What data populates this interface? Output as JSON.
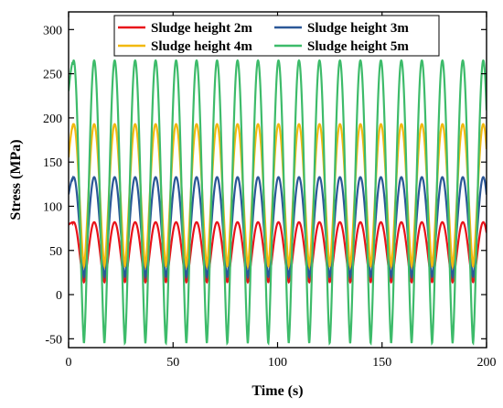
{
  "chart_data": {
    "type": "line",
    "title": "",
    "xlabel": "Time (s)",
    "ylabel": "Stress (MPa)",
    "xlim": [
      0,
      200
    ],
    "ylim": [
      -60,
      320
    ],
    "x_ticks": [
      0,
      50,
      100,
      150,
      200
    ],
    "y_ticks": [
      -50,
      0,
      50,
      100,
      150,
      200,
      250,
      300
    ],
    "grid": false,
    "legend_position": "top",
    "legend_columns": 2,
    "period_s": 9.8,
    "series": [
      {
        "name": "Sludge height 2m",
        "color": "#e8121a",
        "max": 82,
        "min": 14,
        "min_at_start": 75
      },
      {
        "name": "Sludge height 3m",
        "color": "#2b5797",
        "max": 133,
        "min": 20,
        "min_at_start": 85
      },
      {
        "name": "Sludge height 4m",
        "color": "#f2b90f",
        "max": 193,
        "min": 32,
        "min_at_start": 100
      },
      {
        "name": "Sludge height 5m",
        "color": "#3dbb6a",
        "max": 265,
        "min": -55,
        "min_at_start": 180
      }
    ]
  }
}
